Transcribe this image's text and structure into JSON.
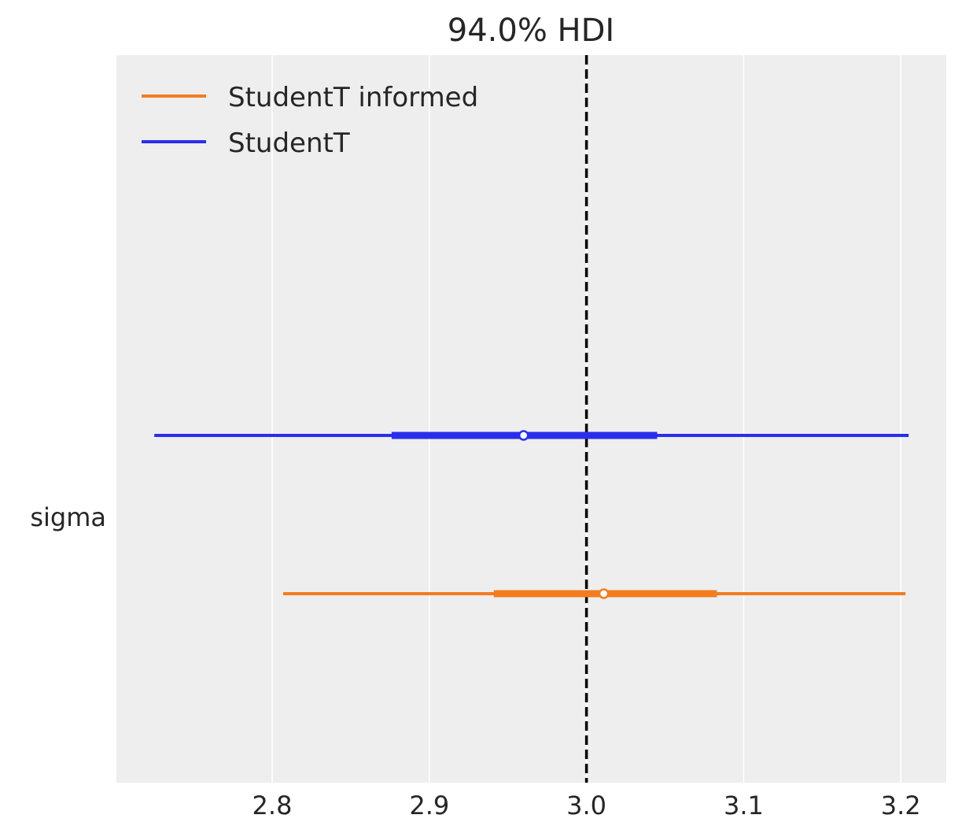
{
  "chart_data": {
    "type": "forest",
    "title": "94.0% HDI",
    "variable": "sigma",
    "xlim": [
      2.7,
      3.23
    ],
    "xticks": [
      2.8,
      2.9,
      3.0,
      3.1,
      3.2
    ],
    "xtick_labels": [
      "2.8",
      "2.9",
      "3.0",
      "3.1",
      "3.2"
    ],
    "reference_line": 3.0,
    "grid": true,
    "legend_location": "top-left",
    "series": [
      {
        "name": "StudentT informed",
        "color": "#f47c20",
        "hdi_94": [
          2.807,
          3.203
        ],
        "interquartile": [
          2.941,
          3.083
        ],
        "point_estimate": 3.011
      },
      {
        "name": "StudentT",
        "color": "#2a2eec",
        "hdi_94": [
          2.725,
          3.205
        ],
        "interquartile": [
          2.876,
          3.045
        ],
        "point_estimate": 2.96
      }
    ]
  }
}
